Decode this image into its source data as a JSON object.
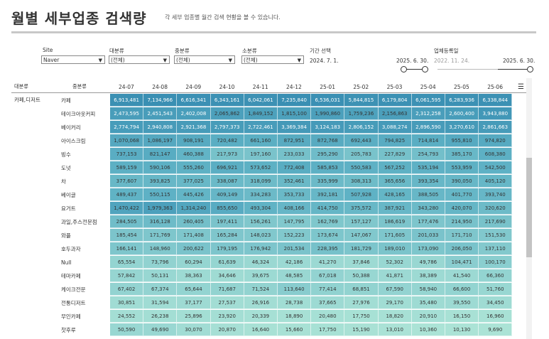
{
  "header": {
    "title": "월별 세부업종 검색량",
    "subtitle": "각 세부 업종별 월간 검색 현황을 볼 수 있습니다."
  },
  "filters": {
    "site": {
      "label": "Site",
      "value": "Naver"
    },
    "major": {
      "label": "대분류",
      "value": "(전체)"
    },
    "middle": {
      "label": "중분류",
      "value": "(전체)"
    },
    "minor": {
      "label": "소분류",
      "value": "(전체)"
    },
    "period": {
      "label": "기간 선택",
      "start": "2024. 7. 1.",
      "end": "2025. 6. 30."
    },
    "regdate": {
      "label": "업체등록일",
      "start": "2022. 11. 24.",
      "end": "2025. 6. 30."
    }
  },
  "table": {
    "col_major": "대분류",
    "col_middle": "중분류",
    "major_value": "카페,디저트",
    "months": [
      "24-07",
      "24-08",
      "24-09",
      "24-10",
      "24-11",
      "24-12",
      "25-01",
      "25-02",
      "25-03",
      "25-04",
      "25-05",
      "25-06"
    ],
    "rows": [
      {
        "label": "카페",
        "values": [
          "6,913,481",
          "7,134,966",
          "6,616,341",
          "6,343,161",
          "6,042,061",
          "7,235,840",
          "6,536,031",
          "5,844,815",
          "6,179,804",
          "6,061,595",
          "6,283,936",
          "6,338,844"
        ]
      },
      {
        "label": "테이크아웃커피",
        "values": [
          "2,473,595",
          "2,451,543",
          "2,402,008",
          "2,065,862",
          "1,849,152",
          "1,815,100",
          "1,990,860",
          "1,759,236",
          "2,156,863",
          "2,312,258",
          "2,600,400",
          "3,943,880"
        ]
      },
      {
        "label": "베이커리",
        "values": [
          "2,774,794",
          "2,940,808",
          "2,921,368",
          "2,797,373",
          "2,722,461",
          "3,369,384",
          "3,124,183",
          "2,806,152",
          "3,088,274",
          "2,896,590",
          "3,270,610",
          "2,861,663"
        ]
      },
      {
        "label": "아이스크림",
        "values": [
          "1,070,068",
          "1,086,197",
          "908,191",
          "720,482",
          "661,160",
          "872,951",
          "872,768",
          "692,443",
          "794,825",
          "714,814",
          "955,810",
          "974,820"
        ]
      },
      {
        "label": "빙수",
        "values": [
          "737,153",
          "821,147",
          "460,388",
          "217,973",
          "197,160",
          "233,033",
          "295,290",
          "205,783",
          "227,829",
          "254,793",
          "385,170",
          "608,380"
        ]
      },
      {
        "label": "도넛",
        "values": [
          "589,159",
          "590,106",
          "555,260",
          "696,921",
          "573,652",
          "772,408",
          "585,853",
          "550,583",
          "567,252",
          "535,194",
          "553,959",
          "542,500"
        ]
      },
      {
        "label": "차",
        "values": [
          "377,607",
          "393,825",
          "377,025",
          "338,087",
          "318,099",
          "352,461",
          "335,999",
          "308,313",
          "365,656",
          "393,354",
          "390,050",
          "405,120"
        ]
      },
      {
        "label": "베이글",
        "values": [
          "489,437",
          "550,115",
          "445,426",
          "409,149",
          "334,283",
          "353,733",
          "392,181",
          "507,928",
          "428,165",
          "388,505",
          "401,770",
          "393,740"
        ]
      },
      {
        "label": "요거트",
        "values": [
          "1,470,422",
          "1,979,363",
          "1,314,240",
          "855,650",
          "493,304",
          "408,166",
          "414,750",
          "375,572",
          "387,921",
          "343,280",
          "420,070",
          "320,620"
        ]
      },
      {
        "label": "과일,주스전문점",
        "values": [
          "284,505",
          "316,128",
          "260,405",
          "197,411",
          "156,261",
          "147,795",
          "162,769",
          "157,127",
          "186,619",
          "177,476",
          "214,950",
          "217,690"
        ]
      },
      {
        "label": "와플",
        "values": [
          "185,454",
          "171,769",
          "171,408",
          "165,284",
          "148,023",
          "152,223",
          "173,674",
          "147,067",
          "171,605",
          "201,033",
          "171,710",
          "151,530"
        ]
      },
      {
        "label": "호두과자",
        "values": [
          "166,141",
          "148,960",
          "200,622",
          "179,195",
          "176,942",
          "201,534",
          "228,395",
          "181,729",
          "189,010",
          "173,090",
          "206,050",
          "137,110"
        ]
      },
      {
        "label": "Null",
        "values": [
          "65,554",
          "73,796",
          "60,294",
          "61,639",
          "46,324",
          "42,186",
          "41,270",
          "37,846",
          "52,302",
          "49,786",
          "104,471",
          "100,170"
        ]
      },
      {
        "label": "테마카페",
        "values": [
          "57,842",
          "50,131",
          "38,363",
          "34,646",
          "39,675",
          "48,585",
          "67,018",
          "50,388",
          "41,871",
          "38,389",
          "41,540",
          "66,360"
        ]
      },
      {
        "label": "케이크전문",
        "values": [
          "67,402",
          "67,374",
          "65,644",
          "71,687",
          "71,524",
          "113,640",
          "77,414",
          "68,851",
          "67,590",
          "58,940",
          "66,600",
          "51,760"
        ]
      },
      {
        "label": "전통디저트",
        "values": [
          "30,851",
          "31,594",
          "37,177",
          "27,537",
          "26,916",
          "28,738",
          "37,665",
          "27,976",
          "29,170",
          "35,480",
          "39,550",
          "34,450"
        ]
      },
      {
        "label": "무인카페",
        "values": [
          "24,552",
          "26,238",
          "25,896",
          "23,920",
          "20,339",
          "18,890",
          "20,480",
          "17,750",
          "18,820",
          "20,910",
          "16,150",
          "16,960"
        ]
      },
      {
        "label": "찻후루",
        "values": [
          "50,590",
          "49,690",
          "30,070",
          "20,870",
          "16,640",
          "15,660",
          "17,750",
          "15,190",
          "13,010",
          "10,360",
          "10,130",
          "9,690"
        ]
      }
    ]
  },
  "colors": {
    "cell_dark": "#3a8fb3",
    "cell_mid": "#5fb2c5",
    "cell_light": "#abe3d6",
    "text_dark": "#ffffff",
    "text_light": "#333333"
  },
  "icons": {
    "sort": "sort-icon",
    "dropdown": "chevron-down-icon"
  }
}
